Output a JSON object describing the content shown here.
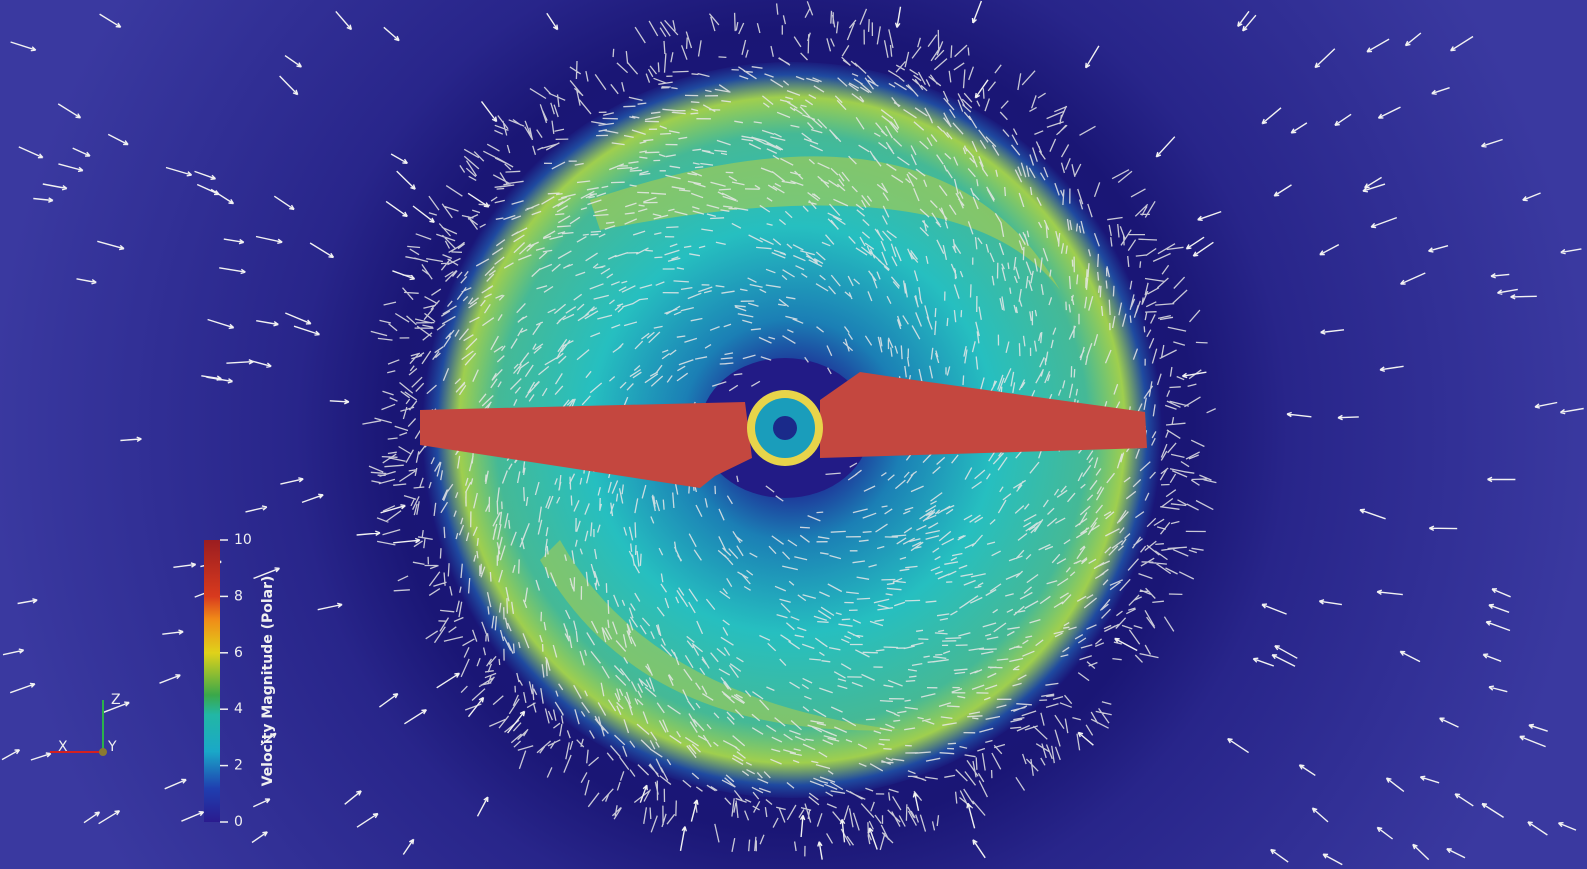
{
  "colorbar": {
    "title": "Velocity Magnitude (Polar)",
    "lim": [
      0,
      10
    ],
    "ticks": [
      0,
      2,
      4,
      6,
      8,
      10
    ]
  },
  "axes": {
    "x": "X",
    "y": "Y",
    "z": "Z"
  }
}
